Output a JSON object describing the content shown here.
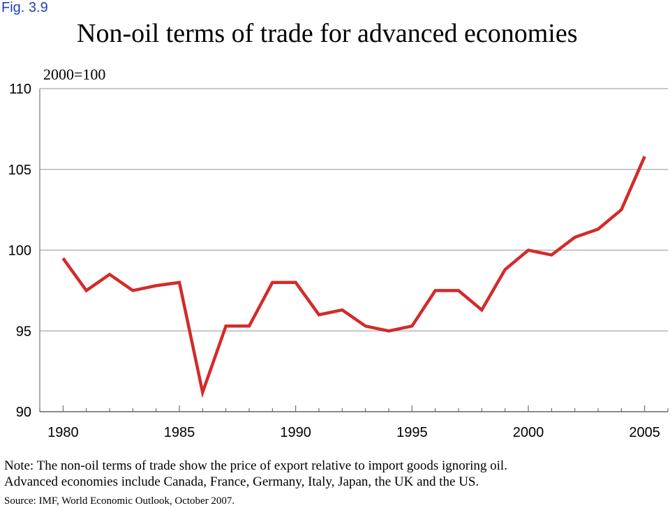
{
  "figure_label": "Fig. 3.9",
  "notes": {
    "line1": "Note: The non-oil terms of trade show the price of export relative to import goods ignoring oil.",
    "line2": "Advanced economies include Canada, France, Germany, Italy, Japan, the UK and the US."
  },
  "source": "Source: IMF, World Economic Outlook, October 2007.",
  "chart_data": {
    "type": "line",
    "title": "Non-oil terms of trade for advanced economies",
    "subtitle": "2000=100",
    "xlabel": "",
    "ylabel": "",
    "xlim": [
      1979,
      2006
    ],
    "ylim": [
      90,
      110
    ],
    "y_ticks": [
      90,
      95,
      100,
      105,
      110
    ],
    "x_ticks": [
      1980,
      1985,
      1990,
      1995,
      2000,
      2005
    ],
    "grid": "horizontal",
    "line_color": "#d42a2a",
    "series": [
      {
        "x": [
          1980,
          1981,
          1982,
          1983,
          1984,
          1985,
          1986,
          1987,
          1988,
          1989,
          1990,
          1991,
          1992,
          1993,
          1994,
          1995,
          1996,
          1997,
          1998,
          1999,
          2000,
          2001,
          2002,
          2003,
          2004,
          2005
        ],
        "values": [
          99.5,
          97.5,
          98.5,
          97.5,
          97.8,
          98.0,
          91.2,
          95.3,
          95.3,
          98.0,
          98.0,
          96.0,
          96.3,
          95.3,
          95.0,
          95.3,
          97.5,
          97.5,
          96.3,
          98.8,
          100.0,
          99.7,
          100.8,
          101.3,
          102.5,
          105.8
        ]
      }
    ]
  }
}
